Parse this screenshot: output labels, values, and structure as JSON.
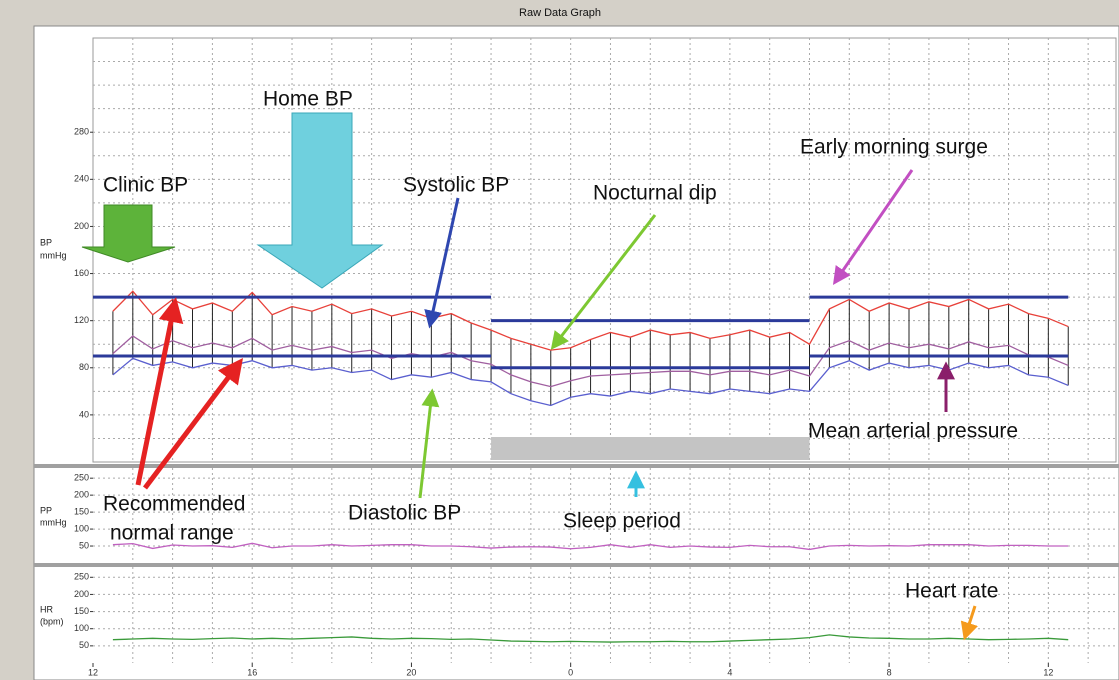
{
  "window_title": "Raw Data Graph",
  "annotations": [
    "Home BP",
    "Clinic BP",
    "Systolic BP",
    "Nocturnal dip",
    "Early morning surge",
    "Recommended",
    "normal range",
    "Diastolic BP",
    "Sleep period",
    "Mean arterial pressure",
    "Heart rate"
  ],
  "chart_data": [
    {
      "type": "line",
      "ylabel": [
        "BP",
        "mmHg"
      ],
      "x": [
        12.5,
        13,
        13.5,
        14,
        14.5,
        15,
        15.5,
        16,
        16.5,
        17,
        17.5,
        18,
        18.5,
        19,
        19.5,
        20,
        20.5,
        21,
        21.5,
        22,
        22.5,
        23,
        23.5,
        24,
        24.5,
        25,
        25.5,
        26,
        26.5,
        27,
        27.5,
        28,
        28.5,
        29,
        29.5,
        30,
        30.5,
        31,
        31.5,
        32,
        32.5,
        33,
        33.5,
        34,
        34.5,
        35,
        35.5,
        36,
        36.5
      ],
      "xlim": [
        12,
        37.7
      ],
      "ylim": [
        0,
        360
      ],
      "yticks": [
        40,
        80,
        120,
        160,
        200,
        240,
        280
      ],
      "ygrid": [
        20,
        40,
        60,
        80,
        100,
        120,
        140,
        160,
        180,
        200,
        220,
        240,
        260,
        280,
        300,
        320,
        340
      ],
      "grid": true,
      "range_bars": true,
      "range_bar_color": "#222222",
      "sleep_period": [
        22,
        30
      ],
      "sleep_color": "#c4c4c4",
      "reference_color": "#2b3a9a",
      "reference_lines": [
        {
          "xlim": [
            12,
            22
          ],
          "value": 140
        },
        {
          "xlim": [
            12,
            22
          ],
          "value": 90
        },
        {
          "xlim": [
            22,
            30
          ],
          "value": 120
        },
        {
          "xlim": [
            22,
            30
          ],
          "value": 80
        },
        {
          "xlim": [
            30,
            36.5
          ],
          "value": 140
        },
        {
          "xlim": [
            30,
            36.5
          ],
          "value": 90
        }
      ],
      "series": [
        {
          "color": "#e8413a",
          "values": [
            128,
            145,
            125,
            138,
            130,
            135,
            128,
            144,
            125,
            132,
            128,
            134,
            126,
            130,
            124,
            128,
            122,
            126,
            118,
            112,
            105,
            100,
            95,
            97,
            104,
            110,
            106,
            112,
            108,
            110,
            105,
            108,
            112,
            106,
            110,
            100,
            130,
            138,
            128,
            135,
            130,
            136,
            132,
            138,
            130,
            134,
            126,
            122,
            115
          ]
        },
        {
          "color": "#5a5fcf",
          "values": [
            74,
            88,
            82,
            85,
            80,
            84,
            82,
            86,
            80,
            82,
            78,
            80,
            76,
            78,
            70,
            74,
            72,
            76,
            70,
            68,
            58,
            52,
            48,
            55,
            58,
            56,
            60,
            58,
            62,
            60,
            58,
            62,
            60,
            58,
            62,
            60,
            80,
            86,
            78,
            84,
            80,
            82,
            78,
            84,
            80,
            82,
            74,
            72,
            65
          ]
        },
        {
          "color": "#a05fa0",
          "values": [
            92,
            107,
            96,
            103,
            97,
            101,
            97,
            105,
            95,
            99,
            95,
            98,
            93,
            95,
            88,
            92,
            89,
            93,
            86,
            83,
            74,
            68,
            64,
            69,
            73,
            74,
            75,
            76,
            77,
            77,
            74,
            77,
            77,
            74,
            78,
            73,
            97,
            103,
            95,
            101,
            97,
            100,
            96,
            102,
            97,
            99,
            91,
            89,
            82
          ]
        }
      ]
    },
    {
      "type": "line",
      "ylabel": [
        "PP",
        "mmHg"
      ],
      "x": [
        12.5,
        13,
        13.5,
        14,
        14.5,
        15,
        15.5,
        16,
        16.5,
        17,
        17.5,
        18,
        18.5,
        19,
        19.5,
        20,
        20.5,
        21,
        21.5,
        22,
        22.5,
        23,
        23.5,
        24,
        24.5,
        25,
        25.5,
        26,
        26.5,
        27,
        27.5,
        28,
        28.5,
        29,
        29.5,
        30,
        30.5,
        31,
        31.5,
        32,
        32.5,
        33,
        33.5,
        34,
        34.5,
        35,
        35.5,
        36,
        36.5
      ],
      "xlim": [
        12,
        37.7
      ],
      "ylim": [
        0,
        280
      ],
      "yticks": [
        50,
        100,
        150,
        200,
        250
      ],
      "grid": true,
      "series": [
        {
          "color": "#c060c0",
          "values": [
            54,
            57,
            43,
            53,
            50,
            51,
            46,
            58,
            45,
            50,
            50,
            54,
            50,
            52,
            54,
            54,
            50,
            50,
            48,
            44,
            47,
            48,
            47,
            42,
            46,
            54,
            46,
            54,
            46,
            50,
            47,
            46,
            52,
            48,
            48,
            40,
            50,
            52,
            50,
            51,
            50,
            54,
            54,
            54,
            50,
            52,
            52,
            50,
            50
          ]
        }
      ]
    },
    {
      "type": "line",
      "ylabel": [
        "HR",
        "(bpm)"
      ],
      "x": [
        12.5,
        13,
        13.5,
        14,
        14.5,
        15,
        15.5,
        16,
        16.5,
        17,
        17.5,
        18,
        18.5,
        19,
        19.5,
        20,
        20.5,
        21,
        21.5,
        22,
        22.5,
        23,
        23.5,
        24,
        24.5,
        25,
        25.5,
        26,
        26.5,
        27,
        27.5,
        28,
        28.5,
        29,
        29.5,
        30,
        30.5,
        31,
        31.5,
        32,
        32.5,
        33,
        33.5,
        34,
        34.5,
        35,
        35.5,
        36,
        36.5
      ],
      "xlim": [
        12,
        37.7
      ],
      "ylim": [
        0,
        280
      ],
      "yticks": [
        50,
        100,
        150,
        200,
        250
      ],
      "grid": true,
      "xticks": [
        12,
        16,
        20,
        {
          "value": 24,
          "label": "0"
        },
        {
          "value": 28,
          "label": "4"
        },
        {
          "value": 32,
          "label": "8"
        },
        {
          "value": 36,
          "label": "12"
        }
      ],
      "xgrid": [
        13,
        14,
        15,
        16,
        17,
        18,
        19,
        20,
        21,
        22,
        23,
        24,
        25,
        26,
        27,
        28,
        29,
        30,
        31,
        32,
        33,
        34,
        35,
        36,
        37
      ],
      "series": [
        {
          "color": "#3a9a3a",
          "values": [
            68,
            70,
            72,
            70,
            69,
            71,
            73,
            70,
            72,
            70,
            72,
            74,
            76,
            72,
            70,
            72,
            71,
            69,
            70,
            67,
            64,
            63,
            62,
            63,
            62,
            61,
            62,
            62,
            63,
            62,
            62,
            64,
            66,
            68,
            70,
            74,
            82,
            76,
            73,
            72,
            70,
            70,
            72,
            70,
            68,
            69,
            70,
            72,
            68
          ]
        }
      ]
    }
  ]
}
